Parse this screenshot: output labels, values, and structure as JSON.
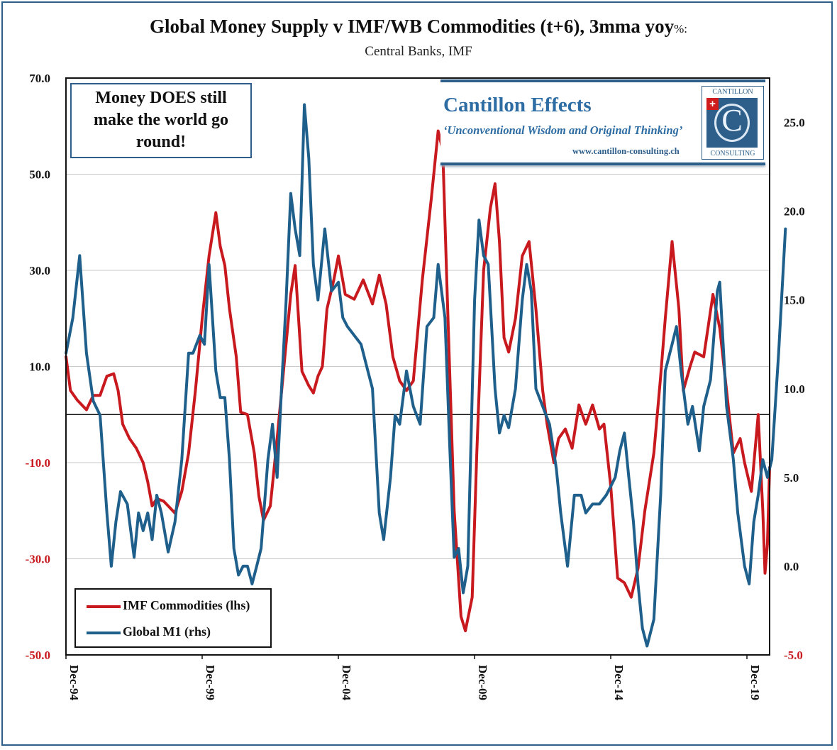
{
  "header": {
    "title": "Global Money Supply v IMF/WB Commodities (t+6), 3mma yoy",
    "title_suffix": "%:",
    "subtitle": "Central Banks, IMF"
  },
  "annotation": {
    "lines": [
      "Money DOES still",
      "make the world go",
      "round!"
    ]
  },
  "brand": {
    "name": "Cantillon Effects",
    "tagline": "‘Unconventional Wisdom and Original Thinking’",
    "url": "www.cantillon-consulting.ch",
    "logo_top": "CANTILLON",
    "logo_bottom": "CONSULTING",
    "logo_letter": "C"
  },
  "legend": {
    "items": [
      {
        "label": "IMF Commodities (lhs)",
        "color": "#c8191e"
      },
      {
        "label": "Global M1 (rhs)",
        "color": "#1f5f8b"
      }
    ]
  },
  "chart_data": {
    "type": "line",
    "x_labels": [
      "Dec-94",
      "Dec-99",
      "Dec-04",
      "Dec-09",
      "Dec-14",
      "Dec-19"
    ],
    "x_start": 1994.917,
    "x_end": 2020.75,
    "y_left": {
      "min": -50,
      "max": 70,
      "step": 20,
      "ticks": [
        "70.0",
        "50.0",
        "30.0",
        "10.0",
        "-10.0",
        "-30.0",
        "-50.0"
      ],
      "negative_color": "#c8191e"
    },
    "y_right": {
      "min": -5,
      "max": 27.5,
      "ticks": [
        "25.0",
        "20.0",
        "15.0",
        "10.0",
        "5.0",
        "0.0",
        "-5.0"
      ],
      "negative_color": "#c8191e"
    },
    "grid": true,
    "zero_line_left": 0,
    "legend_position": "bottom-left",
    "colors": {
      "commodities": "#c8191e",
      "m1": "#1f5f8b"
    },
    "series": [
      {
        "name": "IMF Commodities (lhs)",
        "axis": "left",
        "points": [
          [
            1994.92,
            12
          ],
          [
            1995.08,
            5
          ],
          [
            1995.33,
            3
          ],
          [
            1995.67,
            1
          ],
          [
            1995.92,
            4
          ],
          [
            1996.17,
            4
          ],
          [
            1996.42,
            8
          ],
          [
            1996.67,
            8.5
          ],
          [
            1996.83,
            5
          ],
          [
            1997.0,
            -2
          ],
          [
            1997.25,
            -5
          ],
          [
            1997.5,
            -7
          ],
          [
            1997.75,
            -10
          ],
          [
            1997.92,
            -14
          ],
          [
            1998.08,
            -19
          ],
          [
            1998.25,
            -17.5
          ],
          [
            1998.5,
            -18
          ],
          [
            1998.67,
            -19
          ],
          [
            1998.92,
            -20.5
          ],
          [
            1999.17,
            -16
          ],
          [
            1999.42,
            -8
          ],
          [
            1999.67,
            5
          ],
          [
            1999.92,
            20
          ],
          [
            2000.17,
            33
          ],
          [
            2000.42,
            42
          ],
          [
            2000.58,
            35
          ],
          [
            2000.75,
            31
          ],
          [
            2000.92,
            22
          ],
          [
            2001.17,
            12
          ],
          [
            2001.33,
            0.5
          ],
          [
            2001.58,
            0
          ],
          [
            2001.83,
            -8
          ],
          [
            2002.0,
            -17
          ],
          [
            2002.17,
            -22
          ],
          [
            2002.42,
            -19
          ],
          [
            2002.67,
            -5
          ],
          [
            2002.92,
            10
          ],
          [
            2003.17,
            25
          ],
          [
            2003.33,
            31
          ],
          [
            2003.58,
            9
          ],
          [
            2003.83,
            6
          ],
          [
            2004.0,
            4.5
          ],
          [
            2004.17,
            8
          ],
          [
            2004.33,
            10
          ],
          [
            2004.5,
            22
          ],
          [
            2004.75,
            28
          ],
          [
            2004.92,
            33
          ],
          [
            2005.17,
            25
          ],
          [
            2005.5,
            24
          ],
          [
            2005.83,
            28
          ],
          [
            2006.17,
            23
          ],
          [
            2006.42,
            29
          ],
          [
            2006.67,
            23
          ],
          [
            2006.92,
            12
          ],
          [
            2007.17,
            7
          ],
          [
            2007.42,
            5
          ],
          [
            2007.67,
            7
          ],
          [
            2008.0,
            28
          ],
          [
            2008.33,
            45
          ],
          [
            2008.58,
            59
          ],
          [
            2008.75,
            55
          ],
          [
            2008.92,
            24
          ],
          [
            2009.17,
            -20
          ],
          [
            2009.42,
            -42
          ],
          [
            2009.58,
            -45
          ],
          [
            2009.83,
            -38
          ],
          [
            2010.0,
            -8
          ],
          [
            2010.25,
            30
          ],
          [
            2010.5,
            43
          ],
          [
            2010.67,
            48
          ],
          [
            2010.83,
            36
          ],
          [
            2011.0,
            16
          ],
          [
            2011.17,
            13
          ],
          [
            2011.42,
            20
          ],
          [
            2011.67,
            33
          ],
          [
            2011.92,
            36
          ],
          [
            2012.17,
            22
          ],
          [
            2012.42,
            5
          ],
          [
            2012.58,
            -2
          ],
          [
            2012.83,
            -10
          ],
          [
            2013.0,
            -5
          ],
          [
            2013.25,
            -3
          ],
          [
            2013.5,
            -7
          ],
          [
            2013.75,
            2
          ],
          [
            2014.0,
            -2
          ],
          [
            2014.25,
            2
          ],
          [
            2014.5,
            -3
          ],
          [
            2014.67,
            -2
          ],
          [
            2014.92,
            -15
          ],
          [
            2015.17,
            -34
          ],
          [
            2015.42,
            -35
          ],
          [
            2015.67,
            -38
          ],
          [
            2015.92,
            -32
          ],
          [
            2016.17,
            -20
          ],
          [
            2016.5,
            -8
          ],
          [
            2016.75,
            8
          ],
          [
            2016.92,
            20
          ],
          [
            2017.17,
            36
          ],
          [
            2017.42,
            22
          ],
          [
            2017.58,
            5
          ],
          [
            2017.83,
            10
          ],
          [
            2018.0,
            13
          ],
          [
            2018.33,
            12
          ],
          [
            2018.67,
            25
          ],
          [
            2018.92,
            18
          ],
          [
            2019.17,
            5
          ],
          [
            2019.42,
            -8
          ],
          [
            2019.67,
            -5
          ],
          [
            2019.83,
            -10
          ],
          [
            2020.08,
            -16
          ],
          [
            2020.33,
            0
          ],
          [
            2020.5,
            -20
          ],
          [
            2020.58,
            -33
          ],
          [
            2020.67,
            -27
          ],
          [
            2020.75,
            -11
          ]
        ]
      },
      {
        "name": "Global M1 (rhs)",
        "axis": "right",
        "points": [
          [
            1994.92,
            12
          ],
          [
            1995.17,
            14
          ],
          [
            1995.42,
            17.5
          ],
          [
            1995.67,
            12
          ],
          [
            1995.92,
            9.3
          ],
          [
            1996.17,
            8.5
          ],
          [
            1996.42,
            3
          ],
          [
            1996.58,
            0
          ],
          [
            1996.75,
            2.5
          ],
          [
            1996.92,
            4.2
          ],
          [
            1997.17,
            3.5
          ],
          [
            1997.42,
            0.5
          ],
          [
            1997.58,
            3
          ],
          [
            1997.75,
            2
          ],
          [
            1997.92,
            3
          ],
          [
            1998.08,
            1.5
          ],
          [
            1998.25,
            4
          ],
          [
            1998.42,
            3
          ],
          [
            1998.67,
            0.8
          ],
          [
            1998.92,
            2.5
          ],
          [
            1999.17,
            6
          ],
          [
            1999.42,
            12
          ],
          [
            1999.58,
            12
          ],
          [
            1999.83,
            13
          ],
          [
            2000.0,
            12.5
          ],
          [
            2000.17,
            17
          ],
          [
            2000.42,
            11
          ],
          [
            2000.58,
            9.5
          ],
          [
            2000.75,
            9.5
          ],
          [
            2000.92,
            6
          ],
          [
            2001.08,
            1
          ],
          [
            2001.25,
            -0.5
          ],
          [
            2001.42,
            0
          ],
          [
            2001.58,
            0
          ],
          [
            2001.75,
            -1
          ],
          [
            2001.92,
            0
          ],
          [
            2002.08,
            1
          ],
          [
            2002.33,
            6
          ],
          [
            2002.5,
            8
          ],
          [
            2002.67,
            5
          ],
          [
            2002.83,
            10
          ],
          [
            2003.0,
            15
          ],
          [
            2003.17,
            21
          ],
          [
            2003.33,
            19
          ],
          [
            2003.5,
            17.5
          ],
          [
            2003.67,
            26
          ],
          [
            2003.83,
            23
          ],
          [
            2004.0,
            17
          ],
          [
            2004.17,
            15
          ],
          [
            2004.42,
            19
          ],
          [
            2004.67,
            15.5
          ],
          [
            2004.92,
            16
          ],
          [
            2005.08,
            14
          ],
          [
            2005.25,
            13.5
          ],
          [
            2005.5,
            13
          ],
          [
            2005.75,
            12.5
          ],
          [
            2006.0,
            11
          ],
          [
            2006.17,
            10
          ],
          [
            2006.42,
            3
          ],
          [
            2006.58,
            1.5
          ],
          [
            2006.83,
            5
          ],
          [
            2007.0,
            8.5
          ],
          [
            2007.17,
            8
          ],
          [
            2007.42,
            11
          ],
          [
            2007.67,
            9
          ],
          [
            2007.92,
            8
          ],
          [
            2008.17,
            13.5
          ],
          [
            2008.42,
            14
          ],
          [
            2008.58,
            17
          ],
          [
            2008.83,
            14
          ],
          [
            2009.0,
            7
          ],
          [
            2009.17,
            0.5
          ],
          [
            2009.33,
            1
          ],
          [
            2009.5,
            -1.5
          ],
          [
            2009.67,
            0
          ],
          [
            2009.92,
            15
          ],
          [
            2010.08,
            19.5
          ],
          [
            2010.25,
            17.5
          ],
          [
            2010.42,
            17
          ],
          [
            2010.67,
            10
          ],
          [
            2010.83,
            7.5
          ],
          [
            2011.0,
            8.5
          ],
          [
            2011.17,
            7.8
          ],
          [
            2011.42,
            10
          ],
          [
            2011.67,
            15
          ],
          [
            2011.83,
            17
          ],
          [
            2012.0,
            15.5
          ],
          [
            2012.17,
            10
          ],
          [
            2012.42,
            9
          ],
          [
            2012.67,
            8
          ],
          [
            2012.92,
            5.5
          ],
          [
            2013.08,
            3
          ],
          [
            2013.33,
            0
          ],
          [
            2013.58,
            4
          ],
          [
            2013.83,
            4
          ],
          [
            2014.0,
            3
          ],
          [
            2014.25,
            3.5
          ],
          [
            2014.5,
            3.5
          ],
          [
            2014.75,
            4
          ],
          [
            2014.92,
            4.5
          ],
          [
            2015.08,
            5
          ],
          [
            2015.25,
            6.5
          ],
          [
            2015.42,
            7.5
          ],
          [
            2015.58,
            5
          ],
          [
            2015.75,
            2.5
          ],
          [
            2015.92,
            -1
          ],
          [
            2016.08,
            -3.5
          ],
          [
            2016.25,
            -4.5
          ],
          [
            2016.5,
            -3
          ],
          [
            2016.75,
            4
          ],
          [
            2016.92,
            11
          ],
          [
            2017.17,
            12.5
          ],
          [
            2017.33,
            13.5
          ],
          [
            2017.5,
            11
          ],
          [
            2017.75,
            8
          ],
          [
            2017.92,
            9
          ],
          [
            2018.17,
            6.5
          ],
          [
            2018.33,
            9
          ],
          [
            2018.58,
            10.5
          ],
          [
            2018.83,
            15.5
          ],
          [
            2018.92,
            16
          ],
          [
            2019.17,
            9
          ],
          [
            2019.42,
            6
          ],
          [
            2019.58,
            3
          ],
          [
            2019.83,
            0
          ],
          [
            2020.0,
            -1
          ],
          [
            2020.17,
            2.5
          ],
          [
            2020.33,
            4
          ],
          [
            2020.5,
            6
          ],
          [
            2020.67,
            5
          ],
          [
            2020.83,
            6
          ],
          [
            2021.08,
            12
          ],
          [
            2021.33,
            19
          ]
        ]
      }
    ]
  }
}
